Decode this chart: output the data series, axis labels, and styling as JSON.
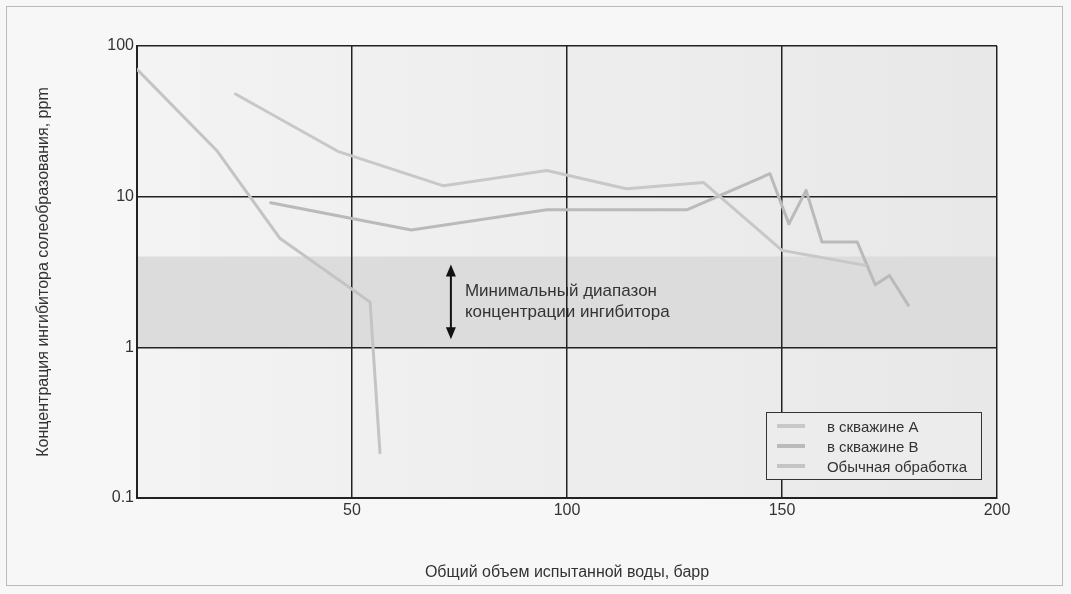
{
  "chart_data": {
    "type": "line",
    "xlabel": "Общий объем испытанной воды, барр",
    "ylabel": "Концентрация ингибитора солеобразования, ppm",
    "log": "y",
    "xlim": [
      0,
      200
    ],
    "xticks": [
      50,
      100,
      150,
      200
    ],
    "ylim": [
      0.1,
      100
    ],
    "yticks": [
      0.1,
      1,
      10,
      100
    ],
    "grid": true,
    "legend": "bottom right",
    "marker": "none",
    "line_style": "solid",
    "bands": [
      {
        "axis": "y",
        "from": 1,
        "to": 4,
        "label": "Минимальный диапазон\nконцентрации ингибитора",
        "color": "#dcdcdc"
      }
    ],
    "series": [
      {
        "name": "в скважине A",
        "color": "#c8c8c8",
        "x": [
          22.9,
          46.7,
          71.3,
          95.3,
          113.8,
          131.8,
          150,
          169.4
        ],
        "values": [
          48,
          20,
          11.8,
          14.9,
          11.3,
          12.4,
          4.4,
          3.5
        ]
      },
      {
        "name": "в скважине B",
        "color": "#bababa",
        "x": [
          31.1,
          63.8,
          95.3,
          128,
          147.2,
          151.6,
          155.6,
          159.3,
          167.5,
          171.7,
          175,
          179.4
        ],
        "values": [
          9.1,
          6,
          8.2,
          8.2,
          14.2,
          6.6,
          11,
          5,
          5,
          2.6,
          3,
          1.9
        ]
      },
      {
        "name": "Обычная обработка",
        "color": "#c4c4c4",
        "x": [
          0,
          18.7,
          33.2,
          54.2,
          56.5
        ],
        "values": [
          70,
          20,
          5.3,
          2,
          0.2
        ]
      }
    ]
  }
}
